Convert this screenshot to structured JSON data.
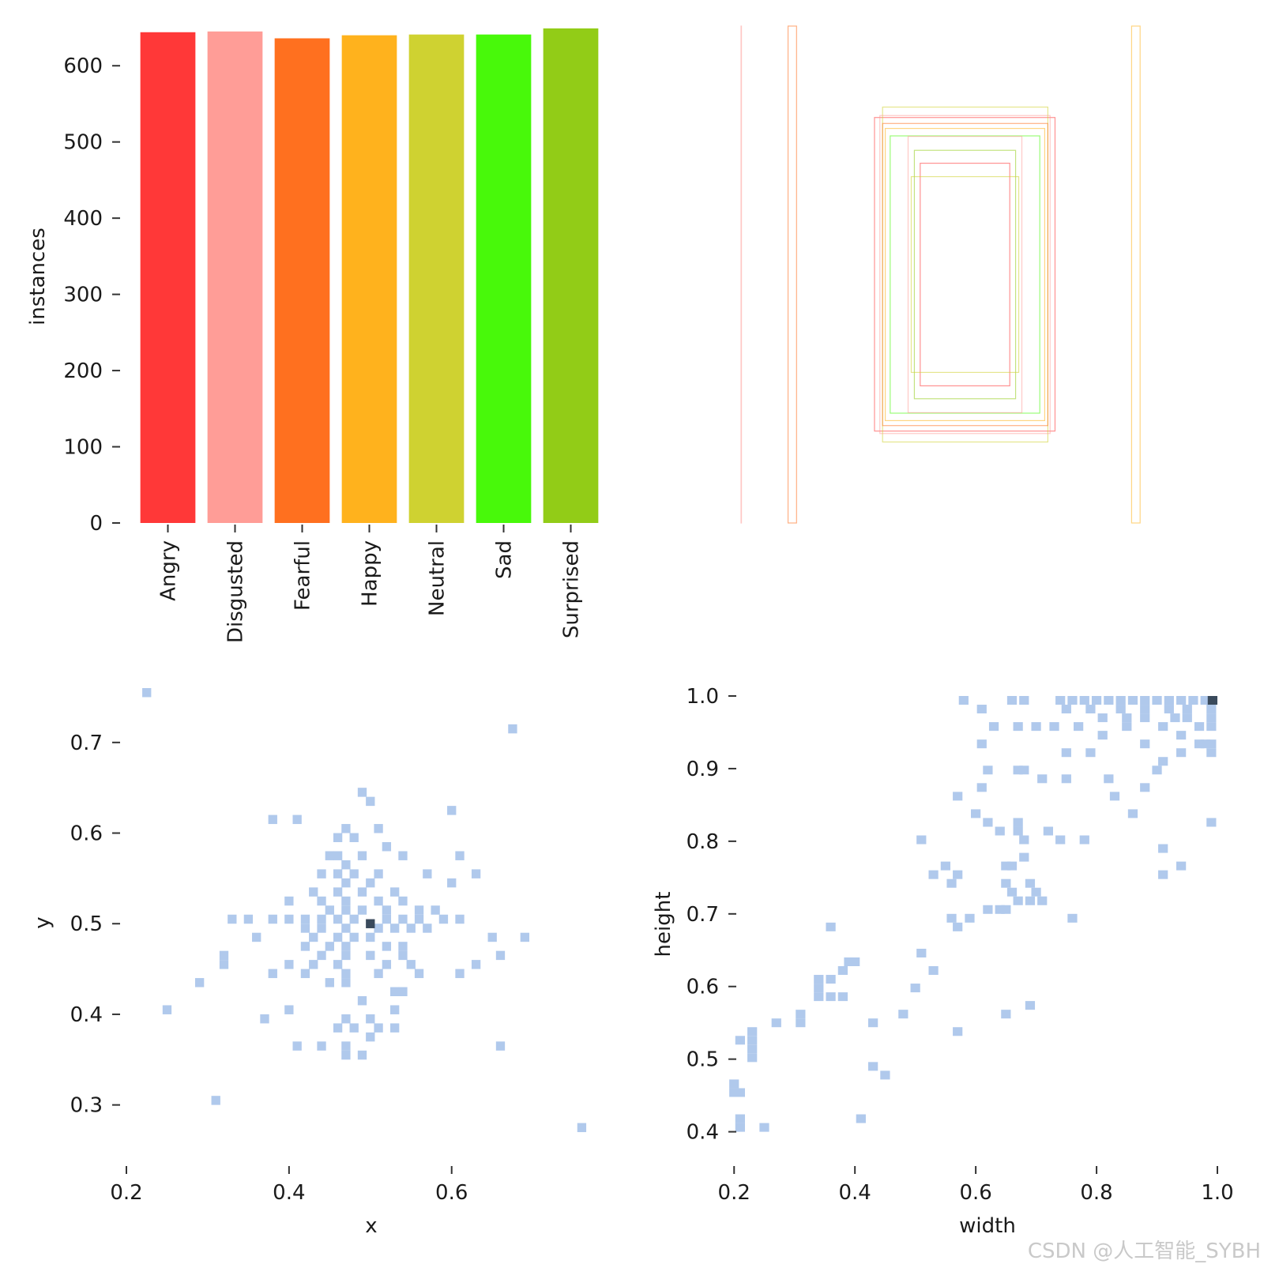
{
  "watermark": "CSDN @人工智能_SYBH",
  "chart_data": [
    {
      "id": "class-counts",
      "type": "bar",
      "ylabel": "instances",
      "xlabel": "",
      "ylim": [
        0,
        650
      ],
      "yticks": [
        0,
        100,
        200,
        300,
        400,
        500,
        600
      ],
      "categories": [
        "Angry",
        "Disgusted",
        "Fearful",
        "Happy",
        "Neutral",
        "Sad",
        "Surprised"
      ],
      "values": [
        644,
        645,
        636,
        640,
        641,
        641,
        649
      ],
      "colors": [
        "#ff3838",
        "#ff9d97",
        "#ff701f",
        "#ffb21d",
        "#cfd231",
        "#48f90a",
        "#92cc17"
      ]
    },
    {
      "id": "box-overlay",
      "type": "scatter",
      "description_units": "normalized box coordinates (x1, y1, x2, y2), image-space 0-1",
      "xlim": [
        0,
        1
      ],
      "ylim": [
        0,
        1
      ],
      "boxes": [
        {
          "x1": 0.0,
          "y1": 0.0,
          "x2": 0.001,
          "y2": 1.0,
          "color": "#ff9d97"
        },
        {
          "x1": 0.105,
          "y1": 0.0,
          "x2": 0.124,
          "y2": 1.0,
          "color": "#ff701f"
        },
        {
          "x1": 0.872,
          "y1": 0.0,
          "x2": 0.891,
          "y2": 1.0,
          "color": "#ffb21d"
        },
        {
          "x1": 0.298,
          "y1": 0.184,
          "x2": 0.701,
          "y2": 0.815,
          "color": "#ff3838"
        },
        {
          "x1": 0.316,
          "y1": 0.163,
          "x2": 0.685,
          "y2": 0.837,
          "color": "#cfd231"
        },
        {
          "x1": 0.316,
          "y1": 0.196,
          "x2": 0.685,
          "y2": 0.804,
          "color": "#ff701f"
        },
        {
          "x1": 0.322,
          "y1": 0.206,
          "x2": 0.678,
          "y2": 0.794,
          "color": "#ffb21d"
        },
        {
          "x1": 0.333,
          "y1": 0.221,
          "x2": 0.667,
          "y2": 0.779,
          "color": "#48f90a"
        },
        {
          "x1": 0.373,
          "y1": 0.222,
          "x2": 0.627,
          "y2": 0.778,
          "color": "#ff9d97"
        },
        {
          "x1": 0.387,
          "y1": 0.25,
          "x2": 0.613,
          "y2": 0.75,
          "color": "#92cc17"
        },
        {
          "x1": 0.4,
          "y1": 0.276,
          "x2": 0.6,
          "y2": 0.724,
          "color": "#ff3838"
        },
        {
          "x1": 0.38,
          "y1": 0.303,
          "x2": 0.62,
          "y2": 0.697,
          "color": "#cfd231"
        },
        {
          "x1": 0.31,
          "y1": 0.18,
          "x2": 0.69,
          "y2": 0.82,
          "color": "#ff9d97"
        }
      ]
    },
    {
      "id": "xy-heatmap",
      "type": "heatmap",
      "xlabel": "x",
      "ylabel": "y",
      "xlim": [
        0.2,
        0.78
      ],
      "ylim": [
        0.25,
        0.76
      ],
      "xticks": [
        0.2,
        0.4,
        0.6
      ],
      "yticks": [
        0.3,
        0.4,
        0.5,
        0.6,
        0.7
      ],
      "bin_width": 0.011,
      "bin_height": 0.01,
      "peak": {
        "x": 0.5,
        "y": 0.5
      },
      "points": [
        [
          0.225,
          0.755
        ],
        [
          0.675,
          0.715
        ],
        [
          0.49,
          0.645
        ],
        [
          0.5,
          0.635
        ],
        [
          0.38,
          0.615
        ],
        [
          0.41,
          0.615
        ],
        [
          0.6,
          0.625
        ],
        [
          0.47,
          0.605
        ],
        [
          0.51,
          0.605
        ],
        [
          0.46,
          0.595
        ],
        [
          0.48,
          0.595
        ],
        [
          0.52,
          0.585
        ],
        [
          0.54,
          0.575
        ],
        [
          0.61,
          0.575
        ],
        [
          0.45,
          0.575
        ],
        [
          0.46,
          0.575
        ],
        [
          0.47,
          0.565
        ],
        [
          0.49,
          0.575
        ],
        [
          0.57,
          0.555
        ],
        [
          0.63,
          0.555
        ],
        [
          0.44,
          0.555
        ],
        [
          0.46,
          0.555
        ],
        [
          0.48,
          0.555
        ],
        [
          0.51,
          0.555
        ],
        [
          0.6,
          0.545
        ],
        [
          0.47,
          0.545
        ],
        [
          0.5,
          0.545
        ],
        [
          0.53,
          0.535
        ],
        [
          0.43,
          0.535
        ],
        [
          0.46,
          0.535
        ],
        [
          0.49,
          0.535
        ],
        [
          0.4,
          0.525
        ],
        [
          0.44,
          0.525
        ],
        [
          0.47,
          0.525
        ],
        [
          0.51,
          0.525
        ],
        [
          0.54,
          0.525
        ],
        [
          0.45,
          0.515
        ],
        [
          0.47,
          0.515
        ],
        [
          0.49,
          0.515
        ],
        [
          0.52,
          0.515
        ],
        [
          0.56,
          0.515
        ],
        [
          0.58,
          0.515
        ],
        [
          0.33,
          0.505
        ],
        [
          0.35,
          0.505
        ],
        [
          0.38,
          0.505
        ],
        [
          0.4,
          0.505
        ],
        [
          0.42,
          0.505
        ],
        [
          0.44,
          0.505
        ],
        [
          0.46,
          0.505
        ],
        [
          0.48,
          0.505
        ],
        [
          0.52,
          0.505
        ],
        [
          0.54,
          0.505
        ],
        [
          0.56,
          0.505
        ],
        [
          0.59,
          0.505
        ],
        [
          0.61,
          0.505
        ],
        [
          0.42,
          0.495
        ],
        [
          0.44,
          0.495
        ],
        [
          0.47,
          0.495
        ],
        [
          0.51,
          0.495
        ],
        [
          0.53,
          0.495
        ],
        [
          0.55,
          0.495
        ],
        [
          0.57,
          0.495
        ],
        [
          0.36,
          0.485
        ],
        [
          0.43,
          0.485
        ],
        [
          0.46,
          0.485
        ],
        [
          0.48,
          0.485
        ],
        [
          0.5,
          0.485
        ],
        [
          0.65,
          0.485
        ],
        [
          0.69,
          0.485
        ],
        [
          0.42,
          0.475
        ],
        [
          0.45,
          0.475
        ],
        [
          0.47,
          0.475
        ],
        [
          0.52,
          0.475
        ],
        [
          0.54,
          0.475
        ],
        [
          0.32,
          0.465
        ],
        [
          0.44,
          0.465
        ],
        [
          0.47,
          0.465
        ],
        [
          0.5,
          0.465
        ],
        [
          0.54,
          0.465
        ],
        [
          0.66,
          0.465
        ],
        [
          0.32,
          0.455
        ],
        [
          0.4,
          0.455
        ],
        [
          0.43,
          0.455
        ],
        [
          0.46,
          0.455
        ],
        [
          0.52,
          0.455
        ],
        [
          0.55,
          0.455
        ],
        [
          0.63,
          0.455
        ],
        [
          0.38,
          0.445
        ],
        [
          0.42,
          0.445
        ],
        [
          0.47,
          0.445
        ],
        [
          0.51,
          0.445
        ],
        [
          0.56,
          0.445
        ],
        [
          0.61,
          0.445
        ],
        [
          0.29,
          0.435
        ],
        [
          0.45,
          0.435
        ],
        [
          0.47,
          0.435
        ],
        [
          0.53,
          0.425
        ],
        [
          0.54,
          0.425
        ],
        [
          0.49,
          0.415
        ],
        [
          0.25,
          0.405
        ],
        [
          0.4,
          0.405
        ],
        [
          0.53,
          0.405
        ],
        [
          0.37,
          0.395
        ],
        [
          0.47,
          0.395
        ],
        [
          0.5,
          0.395
        ],
        [
          0.46,
          0.385
        ],
        [
          0.48,
          0.385
        ],
        [
          0.51,
          0.385
        ],
        [
          0.53,
          0.385
        ],
        [
          0.5,
          0.375
        ],
        [
          0.41,
          0.365
        ],
        [
          0.44,
          0.365
        ],
        [
          0.47,
          0.365
        ],
        [
          0.66,
          0.365
        ],
        [
          0.47,
          0.355
        ],
        [
          0.49,
          0.355
        ],
        [
          0.31,
          0.305
        ],
        [
          0.76,
          0.275
        ]
      ]
    },
    {
      "id": "wh-heatmap",
      "type": "heatmap",
      "xlabel": "width",
      "ylabel": "height",
      "xlim": [
        0.15,
        1.0
      ],
      "ylim": [
        0.38,
        1.0
      ],
      "xticks": [
        0.2,
        0.4,
        0.6,
        0.8,
        1.0
      ],
      "yticks": [
        0.4,
        0.5,
        0.6,
        0.7,
        0.8,
        0.9,
        1.0
      ],
      "bin_width": 0.016,
      "bin_height": 0.012,
      "peak": {
        "x": 0.992,
        "y": 0.994
      },
      "points": [
        [
          0.58,
          0.994
        ],
        [
          0.66,
          0.994
        ],
        [
          0.68,
          0.994
        ],
        [
          0.74,
          0.994
        ],
        [
          0.76,
          0.994
        ],
        [
          0.78,
          0.994
        ],
        [
          0.8,
          0.994
        ],
        [
          0.82,
          0.994
        ],
        [
          0.84,
          0.994
        ],
        [
          0.86,
          0.994
        ],
        [
          0.88,
          0.994
        ],
        [
          0.9,
          0.994
        ],
        [
          0.92,
          0.994
        ],
        [
          0.94,
          0.994
        ],
        [
          0.96,
          0.994
        ],
        [
          0.98,
          0.994
        ],
        [
          0.61,
          0.982
        ],
        [
          0.75,
          0.982
        ],
        [
          0.79,
          0.982
        ],
        [
          0.84,
          0.982
        ],
        [
          0.88,
          0.982
        ],
        [
          0.92,
          0.982
        ],
        [
          0.95,
          0.982
        ],
        [
          0.99,
          0.982
        ],
        [
          0.81,
          0.97
        ],
        [
          0.85,
          0.97
        ],
        [
          0.88,
          0.97
        ],
        [
          0.93,
          0.97
        ],
        [
          0.95,
          0.97
        ],
        [
          0.99,
          0.97
        ],
        [
          0.63,
          0.958
        ],
        [
          0.67,
          0.958
        ],
        [
          0.7,
          0.958
        ],
        [
          0.73,
          0.958
        ],
        [
          0.77,
          0.958
        ],
        [
          0.85,
          0.958
        ],
        [
          0.91,
          0.958
        ],
        [
          0.97,
          0.958
        ],
        [
          0.99,
          0.958
        ],
        [
          0.81,
          0.946
        ],
        [
          0.94,
          0.946
        ],
        [
          0.61,
          0.934
        ],
        [
          0.88,
          0.934
        ],
        [
          0.97,
          0.934
        ],
        [
          0.98,
          0.934
        ],
        [
          0.99,
          0.934
        ],
        [
          0.75,
          0.922
        ],
        [
          0.79,
          0.922
        ],
        [
          0.94,
          0.922
        ],
        [
          0.99,
          0.922
        ],
        [
          0.91,
          0.91
        ],
        [
          0.62,
          0.898
        ],
        [
          0.67,
          0.898
        ],
        [
          0.68,
          0.898
        ],
        [
          0.9,
          0.898
        ],
        [
          0.71,
          0.886
        ],
        [
          0.75,
          0.886
        ],
        [
          0.82,
          0.886
        ],
        [
          0.61,
          0.874
        ],
        [
          0.88,
          0.874
        ],
        [
          0.57,
          0.862
        ],
        [
          0.83,
          0.862
        ],
        [
          0.6,
          0.838
        ],
        [
          0.86,
          0.838
        ],
        [
          0.62,
          0.826
        ],
        [
          0.67,
          0.826
        ],
        [
          0.99,
          0.826
        ],
        [
          0.64,
          0.814
        ],
        [
          0.67,
          0.814
        ],
        [
          0.72,
          0.814
        ],
        [
          0.51,
          0.802
        ],
        [
          0.68,
          0.802
        ],
        [
          0.74,
          0.802
        ],
        [
          0.78,
          0.802
        ],
        [
          0.91,
          0.79
        ],
        [
          0.68,
          0.778
        ],
        [
          0.65,
          0.766
        ],
        [
          0.94,
          0.766
        ],
        [
          0.55,
          0.766
        ],
        [
          0.66,
          0.766
        ],
        [
          0.53,
          0.754
        ],
        [
          0.57,
          0.754
        ],
        [
          0.91,
          0.754
        ],
        [
          0.56,
          0.742
        ],
        [
          0.65,
          0.742
        ],
        [
          0.69,
          0.742
        ],
        [
          0.66,
          0.73
        ],
        [
          0.7,
          0.73
        ],
        [
          0.67,
          0.718
        ],
        [
          0.69,
          0.718
        ],
        [
          0.71,
          0.718
        ],
        [
          0.64,
          0.706
        ],
        [
          0.65,
          0.706
        ],
        [
          0.62,
          0.706
        ],
        [
          0.56,
          0.694
        ],
        [
          0.59,
          0.694
        ],
        [
          0.76,
          0.694
        ],
        [
          0.57,
          0.682
        ],
        [
          0.36,
          0.682
        ],
        [
          0.51,
          0.646
        ],
        [
          0.39,
          0.634
        ],
        [
          0.4,
          0.634
        ],
        [
          0.38,
          0.622
        ],
        [
          0.53,
          0.622
        ],
        [
          0.34,
          0.61
        ],
        [
          0.36,
          0.61
        ],
        [
          0.34,
          0.598
        ],
        [
          0.5,
          0.598
        ],
        [
          0.34,
          0.586
        ],
        [
          0.36,
          0.586
        ],
        [
          0.38,
          0.586
        ],
        [
          0.69,
          0.574
        ],
        [
          0.48,
          0.562
        ],
        [
          0.65,
          0.562
        ],
        [
          0.31,
          0.562
        ],
        [
          0.31,
          0.55
        ],
        [
          0.43,
          0.55
        ],
        [
          0.27,
          0.55
        ],
        [
          0.23,
          0.538
        ],
        [
          0.21,
          0.526
        ],
        [
          0.23,
          0.526
        ],
        [
          0.23,
          0.514
        ],
        [
          0.57,
          0.538
        ],
        [
          0.23,
          0.502
        ],
        [
          0.43,
          0.49
        ],
        [
          0.45,
          0.478
        ],
        [
          0.2,
          0.466
        ],
        [
          0.2,
          0.454
        ],
        [
          0.21,
          0.454
        ],
        [
          0.21,
          0.418
        ],
        [
          0.41,
          0.418
        ],
        [
          0.21,
          0.406
        ],
        [
          0.25,
          0.406
        ]
      ]
    }
  ]
}
